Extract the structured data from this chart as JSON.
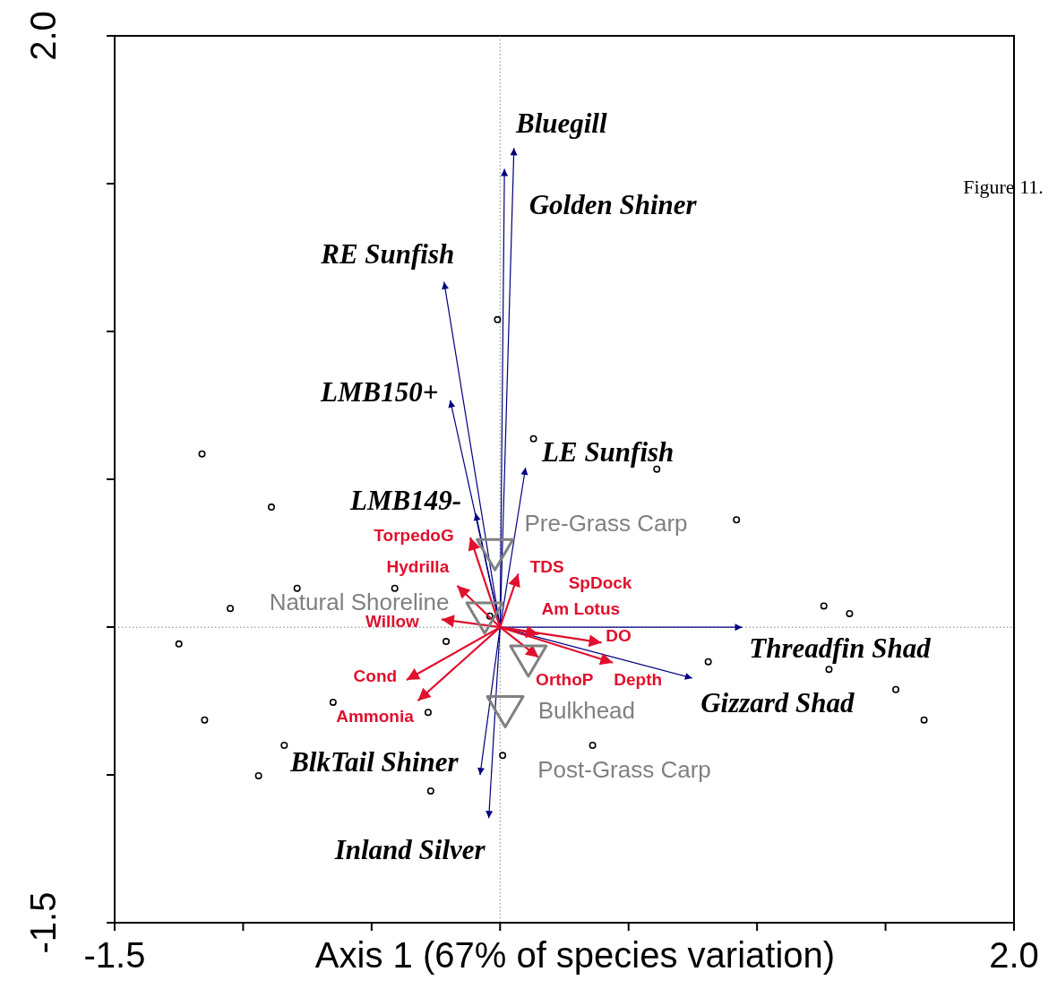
{
  "chart_data": {
    "type": "scatter",
    "xlabel": "Axis 1 (67% of species variation)",
    "xlim": [
      -1.5,
      2.0
    ],
    "ylim": [
      -1.5,
      2.0
    ],
    "xticks": [
      -1.5,
      {
        "value": -1.0,
        "label": null
      },
      {
        "value": -0.5,
        "label": null
      },
      {
        "value": 0,
        "label": null
      },
      {
        "value": 0.5,
        "label": null
      },
      {
        "value": 1.0,
        "label": null
      },
      {
        "value": 1.5,
        "label": null
      },
      {
        "value": 2.0,
        "label": "2.0"
      }
    ],
    "yticks": [
      -1.5,
      {
        "value": -0.9167,
        "label": null
      },
      {
        "value": -0.3333,
        "label": null
      },
      {
        "value": 0.25,
        "label": null
      },
      {
        "value": 0.8333,
        "label": null
      },
      {
        "value": 1.4167,
        "label": null
      },
      {
        "value": 2.0,
        "label": "2.0"
      }
    ],
    "grid": false,
    "legend": false,
    "ref_lines": [
      {
        "axis": "x",
        "value": 0,
        "color": "#808080",
        "line_style": "dotted"
      },
      {
        "axis": "y",
        "value": -0.334,
        "color": "#808080",
        "line_style": "dotted"
      }
    ],
    "series": [
      {
        "type": "scatter",
        "marker": "circle",
        "color": "#000000",
        "x": [
          -1.16,
          -0.89,
          -0.79,
          -1.05,
          -1.25,
          -1.15,
          -0.94,
          -0.84,
          -0.65,
          -0.28,
          -0.27,
          -0.21,
          -0.41,
          -0.04,
          -0.01,
          0.13,
          0.61,
          0.92,
          1.26,
          1.36,
          1.28,
          1.54,
          1.65,
          0.81,
          0.36,
          0.01
        ],
        "values": [
          0.35,
          0.14,
          -0.18,
          -0.26,
          -0.4,
          -0.7,
          -0.92,
          -0.8,
          -0.63,
          -0.67,
          -0.98,
          -0.39,
          -0.18,
          -0.29,
          0.88,
          0.41,
          0.29,
          0.09,
          -0.25,
          -0.28,
          -0.5,
          -0.58,
          -0.7,
          -0.47,
          -0.8,
          -0.84
        ]
      },
      {
        "type": "line",
        "name": "Bluegill",
        "color": "#00007f",
        "x": [
          0,
          0.054
        ],
        "values": [
          -0.334,
          1.557
        ]
      },
      {
        "type": "line",
        "name": "Golden Shiner",
        "color": "#00007f",
        "x": [
          0,
          0.017
        ],
        "values": [
          -0.334,
          1.475
        ]
      },
      {
        "type": "line",
        "name": "RE Sunfish",
        "color": "#00007f",
        "x": [
          0,
          -0.218
        ],
        "values": [
          -0.334,
          1.029
        ]
      },
      {
        "type": "line",
        "name": "LMB150+",
        "color": "#00007f",
        "x": [
          0,
          -0.194
        ],
        "values": [
          -0.334,
          0.562
        ]
      },
      {
        "type": "line",
        "name": "LE Sunfish",
        "color": "#00007f",
        "x": [
          0,
          0.099
        ],
        "values": [
          -0.334,
          0.296
        ]
      },
      {
        "type": "line",
        "name": "LMB149-",
        "color": "#00007f",
        "x": [
          0,
          -0.095
        ],
        "values": [
          -0.334,
          0.116
        ]
      },
      {
        "type": "line",
        "name": "Threadfin Shad",
        "color": "#00007f",
        "x": [
          0,
          0.942
        ],
        "values": [
          -0.334,
          -0.334
        ]
      },
      {
        "type": "line",
        "name": "Gizzard Shad",
        "color": "#00007f",
        "x": [
          0,
          0.748
        ],
        "values": [
          -0.334,
          -0.535
        ]
      },
      {
        "type": "line",
        "name": "BlkTail Shiner",
        "color": "#00007f",
        "x": [
          0,
          -0.078
        ],
        "values": [
          -0.334,
          -0.917
        ]
      },
      {
        "type": "line",
        "name": "Inland Silver",
        "color": "#00007f",
        "x": [
          0,
          -0.044
        ],
        "values": [
          -0.334,
          -1.087
        ]
      },
      {
        "type": "line",
        "name": "TorpedoG",
        "color": "#e0102e",
        "x": [
          0,
          -0.116
        ],
        "values": [
          -0.334,
          0.02
        ]
      },
      {
        "type": "line",
        "name": "Hydrilla",
        "color": "#e0102e",
        "x": [
          0,
          -0.167
        ],
        "values": [
          -0.334,
          -0.17
        ]
      },
      {
        "type": "line",
        "name": "TDS",
        "color": "#e0102e",
        "x": [
          0,
          0.071
        ],
        "values": [
          -0.334,
          -0.123
        ]
      },
      {
        "type": "line",
        "name": "Am Lotus",
        "color": "#e0102e",
        "x": [
          0,
          0.15
        ],
        "values": [
          -0.334,
          -0.361
        ]
      },
      {
        "type": "line",
        "name": "Willow",
        "color": "#e0102e",
        "x": [
          0,
          -0.228
        ],
        "values": [
          -0.334,
          -0.303
        ]
      },
      {
        "type": "line",
        "name": "DO",
        "color": "#e0102e",
        "x": [
          0,
          0.395
        ],
        "values": [
          -0.334,
          -0.395
        ]
      },
      {
        "type": "line",
        "name": "Depth",
        "color": "#e0102e",
        "x": [
          0,
          0.439
        ],
        "values": [
          -0.334,
          -0.474
        ]
      },
      {
        "type": "line",
        "name": "OrthoP",
        "color": "#e0102e",
        "x": [
          0,
          0.15
        ],
        "values": [
          -0.334,
          -0.453
        ]
      },
      {
        "type": "line",
        "name": "Cond",
        "color": "#e0102e",
        "x": [
          0,
          -0.364
        ],
        "values": [
          -0.334,
          -0.542
        ]
      },
      {
        "type": "line",
        "name": "Ammonia",
        "color": "#e0102e",
        "x": [
          0,
          -0.32
        ],
        "values": [
          -0.334,
          -0.624
        ]
      },
      {
        "type": "scatter",
        "marker": "triangle",
        "color": "#808080",
        "x": [
          -0.02,
          -0.06,
          0.11,
          0.02
        ],
        "values": [
          -0.03,
          -0.28,
          -0.45,
          -0.65
        ],
        "value_labels": [
          "Pre-Grass Carp",
          "Natural Shoreline",
          "Bulkhead",
          "Post-Grass Carp"
        ]
      }
    ],
    "annotations": [
      "SpDock",
      "Figure 11."
    ]
  }
}
